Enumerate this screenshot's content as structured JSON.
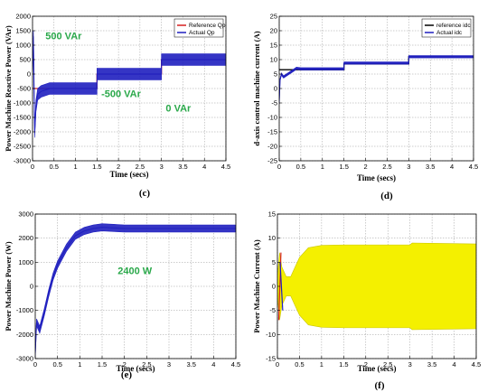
{
  "chart_data": [
    {
      "id": "c",
      "type": "line",
      "caption": "(c)",
      "xlabel": "Time (secs)",
      "ylabel": "Power Machine Reactive Power (VAr)",
      "xlim": [
        0,
        4.5
      ],
      "ylim": [
        -3000,
        2000
      ],
      "xticks": [
        0,
        0.5,
        1,
        1.5,
        2,
        2.5,
        3,
        3.5,
        4,
        4.5
      ],
      "yticks": [
        2000,
        1500,
        1000,
        500,
        0,
        -500,
        -1000,
        -1500,
        -2000,
        -2500,
        -3000
      ],
      "grid": true,
      "legend": {
        "placement": "top-right",
        "entries": [
          "Reference Qp",
          "Actual Qp"
        ]
      },
      "series": [
        {
          "name": "Reference Qp",
          "color": "#d62020",
          "x": [
            0,
            1.5,
            1.5,
            3,
            3,
            4.5
          ],
          "y": [
            -500,
            -500,
            0,
            0,
            500,
            500
          ]
        },
        {
          "name": "Actual Qp",
          "color": "#1f1fbf",
          "x": [
            0,
            0.02,
            0.05,
            0.08,
            0.12,
            0.2,
            0.3,
            0.4,
            0.6,
            1.0,
            1.5,
            1.5,
            2.0,
            3.0,
            3.0,
            3.5,
            4.5
          ],
          "y": [
            0,
            1300,
            -2000,
            -1100,
            -700,
            -600,
            -550,
            -500,
            -500,
            -500,
            -500,
            0,
            0,
            0,
            500,
            500,
            500
          ],
          "band": 200
        }
      ],
      "annotations": [
        {
          "text": "500 VAr",
          "x": 0.3,
          "y": 1200
        },
        {
          "text": "-500 VAr",
          "x": 1.6,
          "y": -800
        },
        {
          "text": "0 VAr",
          "x": 3.1,
          "y": -1300
        }
      ]
    },
    {
      "id": "d",
      "type": "line",
      "caption": "(d)",
      "xlabel": "Time (secs)",
      "ylabel": "d-axis control machine current (A)",
      "xlim": [
        0,
        4.5
      ],
      "ylim": [
        -25,
        25
      ],
      "xticks": [
        0,
        0.5,
        1,
        1.5,
        2,
        2.5,
        3,
        3.5,
        4,
        4.5
      ],
      "yticks": [
        25,
        20,
        15,
        10,
        5,
        0,
        -5,
        -10,
        -15,
        -20,
        -25
      ],
      "grid": true,
      "legend": {
        "placement": "top-right",
        "entries": [
          "reference idc",
          "Actual idc"
        ]
      },
      "series": [
        {
          "name": "reference idc",
          "color": "#000000",
          "x": [
            0,
            0.4,
            1.5,
            1.5,
            3,
            3,
            4.5
          ],
          "y": [
            6.5,
            6.5,
            6.5,
            8.5,
            8.5,
            11,
            11
          ]
        },
        {
          "name": "Actual idc",
          "color": "#1f1fbf",
          "x": [
            0,
            0.02,
            0.05,
            0.1,
            0.2,
            0.3,
            0.4,
            0.5,
            1.5,
            1.5,
            3,
            3,
            4.5
          ],
          "y": [
            -5,
            3,
            5,
            4,
            5,
            6,
            7,
            6.8,
            6.8,
            8.8,
            8.8,
            11,
            11
          ],
          "band": 0.4
        }
      ]
    },
    {
      "id": "e",
      "type": "line",
      "caption": "(e)",
      "xlabel": "Time (secs)",
      "ylabel": "Power Machine Power (W)",
      "xlim": [
        0,
        4.5
      ],
      "ylim": [
        -3000,
        3000
      ],
      "xticks": [
        0,
        0.5,
        1,
        1.5,
        2,
        2.5,
        3,
        3.5,
        4,
        4.5
      ],
      "yticks": [
        3000,
        2000,
        1000,
        0,
        -1000,
        -2000,
        -3000
      ],
      "grid": true,
      "series": [
        {
          "name": "",
          "color": "#1f1fbf",
          "x": [
            0,
            0.03,
            0.1,
            0.2,
            0.3,
            0.4,
            0.5,
            0.7,
            0.9,
            1.1,
            1.3,
            1.5,
            2.0,
            3.0,
            4.5
          ],
          "y": [
            -2800,
            -1500,
            -1800,
            -1100,
            -300,
            400,
            900,
            1600,
            2100,
            2300,
            2400,
            2450,
            2400,
            2400,
            2400
          ],
          "band": 150
        }
      ],
      "annotations": [
        {
          "text": "2400 W",
          "x": 1.85,
          "y": 500
        }
      ]
    },
    {
      "id": "f",
      "type": "area",
      "caption": "(f)",
      "xlabel": "Time (secs)",
      "ylabel": "Power Machine Current (A)",
      "xlim": [
        0,
        4.5
      ],
      "ylim": [
        -15,
        15
      ],
      "xticks": [
        0,
        0.5,
        1,
        1.5,
        2,
        2.5,
        3,
        3.5,
        4,
        4.5
      ],
      "yticks": [
        15,
        10,
        5,
        0,
        -5,
        -10,
        -15
      ],
      "grid": true,
      "series": [
        {
          "name": "",
          "color": "#f4f000",
          "x": [
            0,
            0.05,
            0.1,
            0.2,
            0.3,
            0.4,
            0.5,
            0.7,
            1.0,
            1.5,
            2.0,
            3.0,
            3.05,
            4.5
          ],
          "upper": [
            2,
            7,
            4,
            2,
            2,
            4,
            6,
            8,
            8.5,
            8.6,
            8.6,
            8.6,
            9.0,
            8.8
          ],
          "lower": [
            -2,
            -7,
            -4,
            -2,
            -2,
            -4,
            -6,
            -8,
            -8.5,
            -8.6,
            -8.6,
            -8.6,
            -9.0,
            -8.8
          ]
        }
      ]
    }
  ]
}
